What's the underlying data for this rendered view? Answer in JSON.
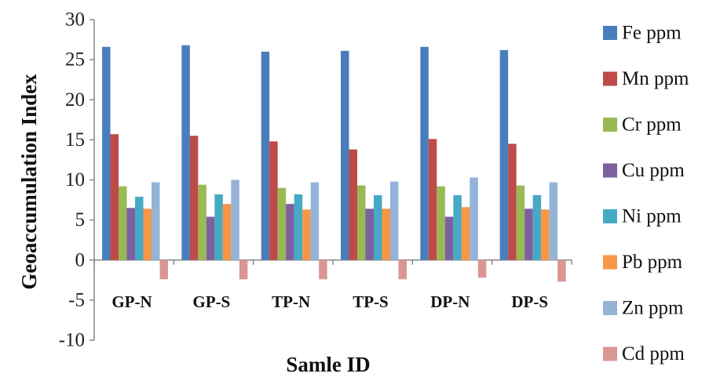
{
  "chart_data": {
    "type": "bar",
    "title": "",
    "xlabel": "Samle ID",
    "ylabel": "Geoaccumulation Index",
    "ylim": [
      -10,
      30
    ],
    "yticks": [
      -10,
      -5,
      0,
      5,
      10,
      15,
      20,
      25,
      30
    ],
    "grid": false,
    "legend_position": "right",
    "categories": [
      "GP-N",
      "GP-S",
      "TP-N",
      "TP-S",
      "DP-N",
      "DP-S"
    ],
    "series": [
      {
        "name": "Fe ppm",
        "color": "#4a7ebb",
        "values": [
          26.6,
          26.8,
          26.0,
          26.1,
          26.6,
          26.2
        ]
      },
      {
        "name": "Mn ppm",
        "color": "#be4b48",
        "values": [
          15.7,
          15.5,
          14.8,
          13.8,
          15.1,
          14.5
        ]
      },
      {
        "name": "Cr ppm",
        "color": "#98b954",
        "values": [
          9.2,
          9.4,
          9.0,
          9.3,
          9.2,
          9.3
        ]
      },
      {
        "name": "Cu ppm",
        "color": "#7d60a0",
        "values": [
          6.5,
          5.4,
          7.0,
          6.4,
          5.4,
          6.4
        ]
      },
      {
        "name": "Ni ppm",
        "color": "#46aac4",
        "values": [
          7.9,
          8.2,
          8.2,
          8.1,
          8.1,
          8.1
        ]
      },
      {
        "name": "Pb ppm",
        "color": "#f79646",
        "values": [
          6.4,
          7.0,
          6.3,
          6.4,
          6.6,
          6.3
        ]
      },
      {
        "name": "Zn ppm",
        "color": "#95b3d7",
        "values": [
          9.7,
          10.0,
          9.7,
          9.8,
          10.3,
          9.7
        ]
      },
      {
        "name": "Cd ppm",
        "color": "#d99694",
        "values": [
          -2.4,
          -2.4,
          -2.4,
          -2.4,
          -2.2,
          -2.7
        ]
      }
    ]
  }
}
